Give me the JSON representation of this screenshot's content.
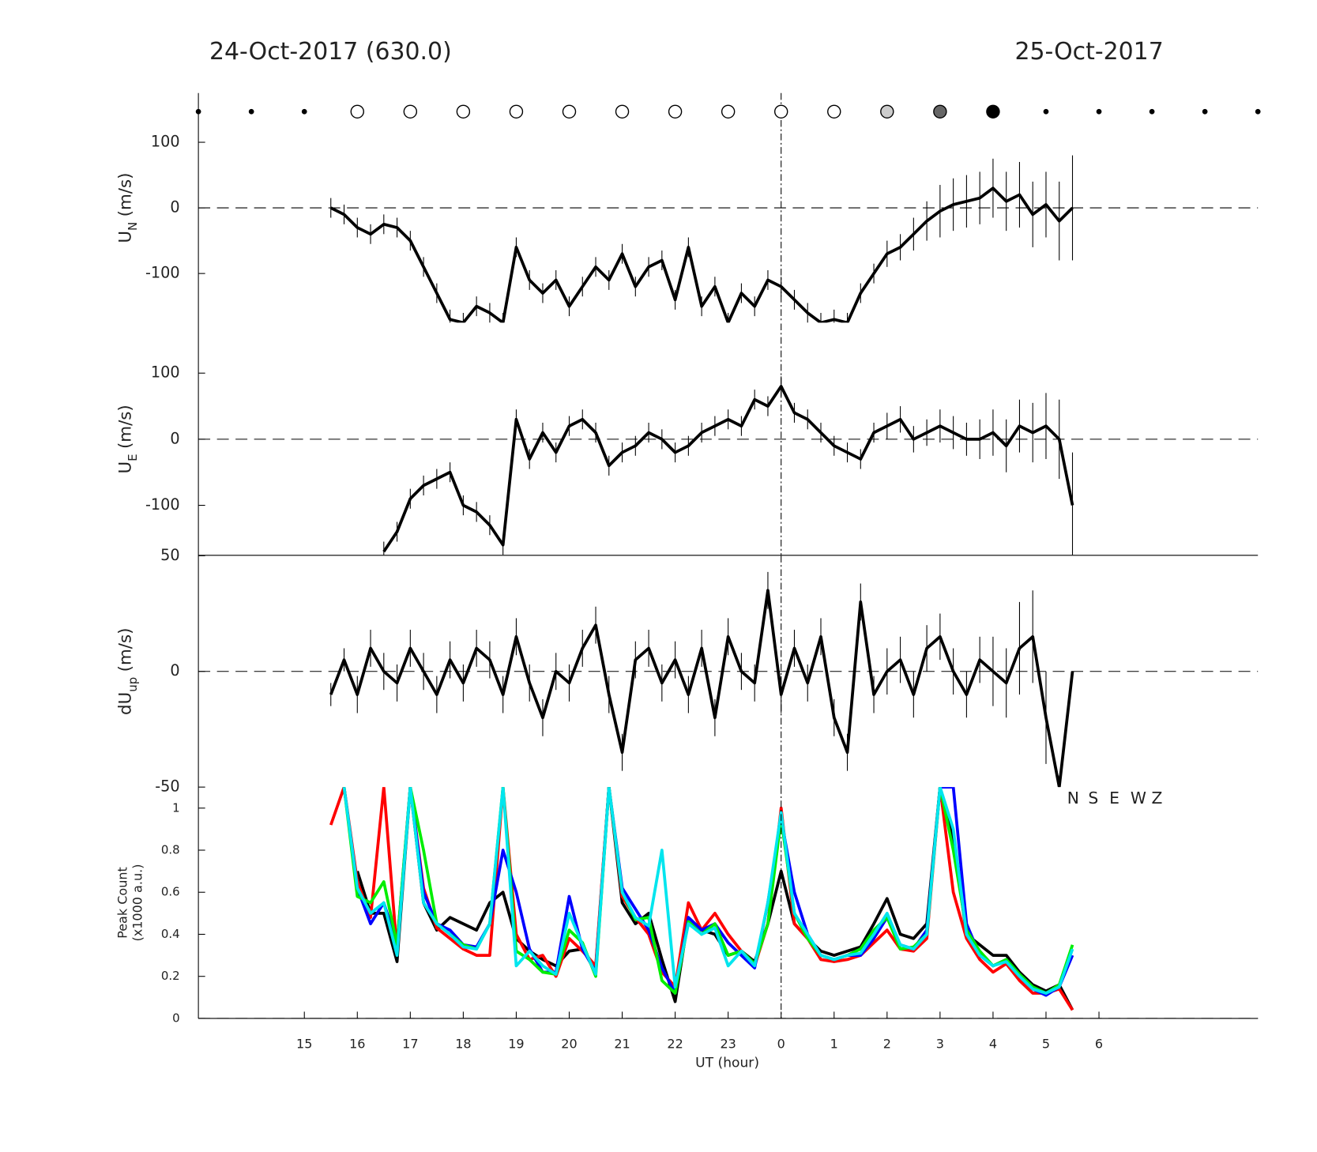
{
  "chart_data": [
    {
      "type": "errorbar",
      "title": "24-Oct-2017 (630.0)",
      "title_right": "25-Oct-2017",
      "ylabel": [
        "U",
        "N",
        "(m/s)"
      ],
      "xlim": [
        13,
        33
      ],
      "ylim": [
        -175,
        175
      ],
      "yticks": [
        -100,
        0,
        100
      ],
      "zero_line": true,
      "vline": 24,
      "color": "#000000",
      "sky_x": [
        13,
        14,
        15,
        16,
        17,
        18,
        19,
        20,
        21,
        22,
        23,
        24,
        25,
        26,
        27,
        28,
        29,
        30,
        31,
        32,
        33
      ],
      "sky_fill": [
        null,
        null,
        null,
        "#ffffff",
        "#ffffff",
        "#ffffff",
        "#ffffff",
        "#ffffff",
        "#ffffff",
        "#ffffff",
        "#ffffff",
        "#ffffff",
        "#ffffff",
        "#cccccc",
        "#666666",
        "#000000",
        null,
        null,
        null,
        null,
        null
      ],
      "x": [
        15.5,
        15.75,
        16,
        16.25,
        16.5,
        16.75,
        17,
        17.25,
        17.5,
        17.75,
        18,
        18.25,
        18.5,
        18.75,
        19,
        19.25,
        19.5,
        19.75,
        20,
        20.25,
        20.5,
        20.75,
        21,
        21.25,
        21.5,
        21.75,
        22,
        22.25,
        22.5,
        22.75,
        23,
        23.25,
        23.5,
        23.75,
        24,
        24.25,
        24.5,
        24.75,
        25,
        25.25,
        25.5,
        25.75,
        26,
        26.25,
        26.5,
        26.75,
        27,
        27.25,
        27.5,
        27.75,
        28,
        28.25,
        28.5,
        28.75,
        29,
        29.25,
        29.5
      ],
      "values": [
        0,
        -10,
        -30,
        -40,
        -25,
        -30,
        -50,
        -90,
        -130,
        -170,
        -175,
        -150,
        -160,
        -175,
        -60,
        -110,
        -130,
        -110,
        -150,
        -120,
        -90,
        -110,
        -70,
        -120,
        -90,
        -80,
        -140,
        -60,
        -150,
        -120,
        -175,
        -130,
        -150,
        -110,
        -120,
        -140,
        -160,
        -175,
        -170,
        -175,
        -130,
        -100,
        -70,
        -60,
        -40,
        -20,
        -5,
        5,
        10,
        15,
        30,
        10,
        20,
        -10,
        5,
        -20,
        0
      ],
      "errors": [
        15,
        15,
        15,
        15,
        15,
        15,
        15,
        15,
        15,
        15,
        15,
        15,
        15,
        15,
        15,
        15,
        15,
        15,
        15,
        15,
        15,
        15,
        15,
        15,
        15,
        15,
        15,
        15,
        15,
        15,
        15,
        15,
        15,
        15,
        15,
        15,
        15,
        15,
        15,
        15,
        15,
        15,
        20,
        20,
        25,
        30,
        40,
        40,
        40,
        40,
        45,
        45,
        50,
        50,
        50,
        60,
        80
      ]
    },
    {
      "type": "errorbar",
      "ylabel": [
        "U",
        "E",
        "(m/s)"
      ],
      "xlim": [
        13,
        33
      ],
      "ylim": [
        -175,
        175
      ],
      "yticks": [
        -100,
        0,
        100
      ],
      "zero_line": true,
      "vline": 24,
      "color": "#000000",
      "x": [
        15.5,
        15.75,
        16,
        16.25,
        16.5,
        16.75,
        17,
        17.25,
        17.5,
        17.75,
        18,
        18.25,
        18.5,
        18.75,
        19,
        19.25,
        19.5,
        19.75,
        20,
        20.25,
        20.5,
        20.75,
        21,
        21.25,
        21.5,
        21.75,
        22,
        22.25,
        22.5,
        22.75,
        23,
        23.25,
        23.5,
        23.75,
        24,
        24.25,
        24.5,
        24.75,
        25,
        25.25,
        25.5,
        25.75,
        26,
        26.25,
        26.5,
        26.75,
        27,
        27.25,
        27.5,
        27.75,
        28,
        28.25,
        28.5,
        28.75,
        29,
        29.25,
        29.5
      ],
      "values": [
        null,
        null,
        null,
        null,
        -170,
        -140,
        -90,
        -70,
        -60,
        -50,
        -100,
        -110,
        -130,
        -160,
        30,
        -30,
        10,
        -20,
        20,
        30,
        10,
        -40,
        -20,
        -10,
        10,
        0,
        -20,
        -10,
        10,
        20,
        30,
        20,
        60,
        50,
        80,
        40,
        30,
        10,
        -10,
        -20,
        -30,
        10,
        20,
        30,
        0,
        10,
        20,
        10,
        0,
        0,
        10,
        -10,
        20,
        10,
        20,
        0,
        -100
      ],
      "errors": [
        null,
        null,
        null,
        null,
        15,
        15,
        15,
        15,
        15,
        15,
        15,
        15,
        15,
        15,
        15,
        15,
        15,
        15,
        15,
        15,
        15,
        15,
        15,
        15,
        15,
        15,
        15,
        15,
        15,
        15,
        15,
        15,
        15,
        15,
        15,
        15,
        15,
        15,
        15,
        15,
        15,
        15,
        20,
        20,
        20,
        20,
        25,
        25,
        25,
        30,
        35,
        40,
        40,
        45,
        50,
        60,
        80
      ]
    },
    {
      "type": "errorbar",
      "ylabel": [
        "dU",
        "up",
        "(m/s)"
      ],
      "xlim": [
        13,
        33
      ],
      "ylim": [
        -50,
        50
      ],
      "yticks": [
        -50,
        0,
        50
      ],
      "zero_line": true,
      "vline": 24,
      "color": "#000000",
      "x": [
        15.5,
        15.75,
        16,
        16.25,
        16.5,
        16.75,
        17,
        17.25,
        17.5,
        17.75,
        18,
        18.25,
        18.5,
        18.75,
        19,
        19.25,
        19.5,
        19.75,
        20,
        20.25,
        20.5,
        20.75,
        21,
        21.25,
        21.5,
        21.75,
        22,
        22.25,
        22.5,
        22.75,
        23,
        23.25,
        23.5,
        23.75,
        24,
        24.25,
        24.5,
        24.75,
        25,
        25.25,
        25.5,
        25.75,
        26,
        26.25,
        26.5,
        26.75,
        27,
        27.25,
        27.5,
        27.75,
        28,
        28.25,
        28.5,
        28.75,
        29,
        29.25,
        29.5
      ],
      "values": [
        -10,
        5,
        -10,
        10,
        0,
        -5,
        10,
        0,
        -10,
        5,
        -5,
        10,
        5,
        -10,
        15,
        -5,
        -20,
        0,
        -5,
        10,
        20,
        -10,
        -35,
        5,
        10,
        -5,
        5,
        -10,
        10,
        -20,
        15,
        0,
        -5,
        35,
        -10,
        10,
        -5,
        15,
        -20,
        -35,
        30,
        -10,
        0,
        5,
        -10,
        10,
        15,
        0,
        -10,
        5,
        0,
        -5,
        10,
        15,
        -20,
        -50,
        0
      ],
      "errors": [
        5,
        5,
        8,
        8,
        8,
        8,
        8,
        8,
        8,
        8,
        8,
        8,
        8,
        8,
        8,
        8,
        8,
        8,
        8,
        8,
        8,
        8,
        8,
        8,
        8,
        8,
        8,
        8,
        8,
        8,
        8,
        8,
        8,
        8,
        8,
        8,
        8,
        8,
        8,
        8,
        8,
        8,
        10,
        10,
        10,
        10,
        10,
        10,
        10,
        10,
        15,
        15,
        20,
        20,
        20,
        5,
        0
      ]
    },
    {
      "type": "line",
      "ylabel": [
        "Peak Count",
        "(x1000 a.u.)"
      ],
      "xlabel": "UT (hour)",
      "xlim": [
        13,
        33
      ],
      "ylim": [
        0,
        1.1
      ],
      "yticks": [
        0,
        0.2,
        0.4,
        0.6,
        0.8,
        1
      ],
      "zero_line": true,
      "vline": 24,
      "xticks": [
        15,
        16,
        17,
        18,
        19,
        20,
        21,
        22,
        23,
        {
          "value": 24,
          "label": "0"
        },
        {
          "value": 25,
          "label": "1"
        },
        {
          "value": 26,
          "label": "2"
        },
        {
          "value": 27,
          "label": "3"
        },
        {
          "value": 28,
          "label": "4"
        },
        {
          "value": 29,
          "label": "5"
        },
        {
          "value": 30,
          "label": "6"
        }
      ],
      "x": [
        15.5,
        15.75,
        16,
        16.25,
        16.5,
        16.75,
        17,
        17.25,
        17.5,
        17.75,
        18,
        18.25,
        18.5,
        18.75,
        19,
        19.25,
        19.5,
        19.75,
        20,
        20.25,
        20.5,
        20.75,
        21,
        21.25,
        21.5,
        21.75,
        22,
        22.25,
        22.5,
        22.75,
        23,
        23.25,
        23.5,
        23.75,
        24,
        24.25,
        24.5,
        24.75,
        25,
        25.25,
        25.5,
        25.75,
        26,
        26.25,
        26.5,
        26.75,
        27,
        27.25,
        27.5,
        27.75,
        28,
        28.25,
        28.5,
        28.75,
        29,
        29.25,
        29.5
      ],
      "series": [
        {
          "name": "N",
          "color": "#000000",
          "values": [
            null,
            null,
            0.7,
            0.5,
            0.5,
            0.27,
            1.1,
            0.55,
            0.42,
            0.48,
            0.45,
            0.42,
            0.55,
            0.6,
            0.38,
            0.32,
            0.28,
            0.25,
            0.32,
            0.33,
            0.24,
            1.1,
            0.55,
            0.45,
            0.5,
            0.28,
            0.08,
            0.48,
            0.42,
            0.4,
            0.3,
            0.32,
            0.27,
            0.45,
            0.7,
            0.45,
            0.38,
            0.32,
            0.3,
            0.32,
            0.34,
            0.45,
            0.57,
            0.4,
            0.38,
            0.45,
            1.1,
            0.85,
            0.4,
            0.35,
            0.3,
            0.3,
            0.22,
            0.16,
            0.13,
            0.16,
            0.04
          ]
        },
        {
          "name": "S",
          "color": "#ff0000",
          "values": [
            0.92,
            1.1,
            0.65,
            0.48,
            1.1,
            0.32,
            1.1,
            0.62,
            0.43,
            0.38,
            0.33,
            0.3,
            0.3,
            1.1,
            0.4,
            0.28,
            0.3,
            0.2,
            0.38,
            0.32,
            0.25,
            1.1,
            0.58,
            0.48,
            0.4,
            0.22,
            0.15,
            0.55,
            0.42,
            0.5,
            0.4,
            0.32,
            0.25,
            0.45,
            1.0,
            0.45,
            0.38,
            0.28,
            0.27,
            0.28,
            0.3,
            0.36,
            0.42,
            0.33,
            0.32,
            0.38,
            1.1,
            0.6,
            0.38,
            0.28,
            0.22,
            0.26,
            0.18,
            0.12,
            0.12,
            0.14,
            0.04
          ]
        },
        {
          "name": "E",
          "color": "#0000ff",
          "values": [
            null,
            1.1,
            0.62,
            0.45,
            0.55,
            0.35,
            1.1,
            0.6,
            0.45,
            0.42,
            0.35,
            0.34,
            0.45,
            0.8,
            0.6,
            0.33,
            0.22,
            0.22,
            0.58,
            0.33,
            0.22,
            1.1,
            0.62,
            0.52,
            0.42,
            0.24,
            0.12,
            0.48,
            0.42,
            0.45,
            0.36,
            0.3,
            0.24,
            0.55,
            0.95,
            0.6,
            0.4,
            0.3,
            0.28,
            0.3,
            0.3,
            0.38,
            0.48,
            0.35,
            0.33,
            0.42,
            1.1,
            1.1,
            0.45,
            0.3,
            0.25,
            0.28,
            0.2,
            0.14,
            0.11,
            0.15,
            0.3
          ]
        },
        {
          "name": "W",
          "color": "#00ee00",
          "values": [
            null,
            1.1,
            0.58,
            0.55,
            0.65,
            0.35,
            1.1,
            0.8,
            0.45,
            0.4,
            0.35,
            0.33,
            0.45,
            1.1,
            0.32,
            0.28,
            0.22,
            0.21,
            0.42,
            0.36,
            0.2,
            1.1,
            0.6,
            0.47,
            0.48,
            0.18,
            0.12,
            0.46,
            0.4,
            0.45,
            0.3,
            0.32,
            0.26,
            0.45,
            0.95,
            0.5,
            0.38,
            0.3,
            0.28,
            0.3,
            0.33,
            0.42,
            0.48,
            0.33,
            0.34,
            0.4,
            1.1,
            0.8,
            0.42,
            0.32,
            0.25,
            0.28,
            0.21,
            0.15,
            0.12,
            0.16,
            0.35
          ]
        },
        {
          "name": "Z",
          "color": "#00e5ee",
          "values": [
            null,
            1.1,
            0.62,
            0.5,
            0.55,
            0.3,
            1.1,
            0.55,
            0.45,
            0.4,
            0.34,
            0.33,
            0.45,
            1.1,
            0.25,
            0.32,
            0.25,
            0.21,
            0.5,
            0.35,
            0.21,
            1.1,
            0.6,
            0.48,
            0.44,
            0.8,
            0.15,
            0.45,
            0.4,
            0.43,
            0.25,
            0.32,
            0.25,
            0.55,
            0.98,
            0.5,
            0.4,
            0.3,
            0.28,
            0.3,
            0.31,
            0.4,
            0.5,
            0.35,
            0.33,
            0.4,
            1.1,
            0.9,
            0.4,
            0.3,
            0.25,
            0.27,
            0.2,
            0.14,
            0.12,
            0.15,
            0.33
          ]
        }
      ]
    }
  ]
}
